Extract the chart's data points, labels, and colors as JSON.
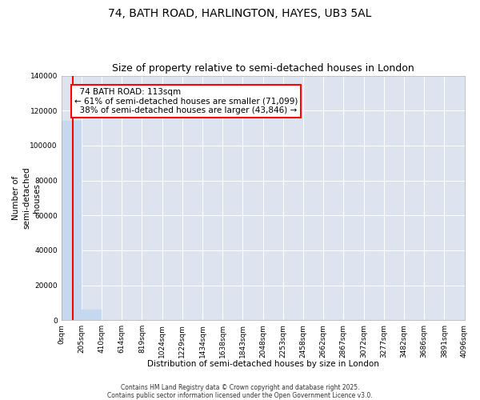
{
  "title1": "74, BATH ROAD, HARLINGTON, HAYES, UB3 5AL",
  "title2": "Size of property relative to semi-detached houses in London",
  "xlabel": "Distribution of semi-detached houses by size in London",
  "ylabel": "Number of\nsemi-detached\nhouses",
  "property_label": "74 BATH ROAD: 113sqm",
  "pct_smaller": 61,
  "pct_larger": 38,
  "count_smaller": 71099,
  "count_larger": 43846,
  "bar_color": "#c5d8f0",
  "vline_color": "red",
  "vline_x": 113,
  "background_color": "#dde4f0",
  "bins": [
    0,
    205,
    410,
    614,
    819,
    1024,
    1229,
    1434,
    1638,
    1843,
    2048,
    2253,
    2458,
    2662,
    2867,
    3072,
    3277,
    3482,
    3686,
    3891,
    4096
  ],
  "counts": [
    114000,
    6000,
    0,
    0,
    0,
    0,
    0,
    0,
    0,
    0,
    0,
    0,
    0,
    0,
    0,
    0,
    0,
    0,
    0,
    0
  ],
  "ylim": [
    0,
    140000
  ],
  "yticks": [
    0,
    20000,
    40000,
    60000,
    80000,
    100000,
    120000,
    140000
  ],
  "tick_labels": [
    "0sqm",
    "205sqm",
    "410sqm",
    "614sqm",
    "819sqm",
    "1024sqm",
    "1229sqm",
    "1434sqm",
    "1638sqm",
    "1843sqm",
    "2048sqm",
    "2253sqm",
    "2458sqm",
    "2662sqm",
    "2867sqm",
    "3072sqm",
    "3277sqm",
    "3482sqm",
    "3686sqm",
    "3891sqm",
    "4096sqm"
  ],
  "footnote": "Contains HM Land Registry data © Crown copyright and database right 2025.\nContains public sector information licensed under the Open Government Licence v3.0.",
  "title_fontsize": 10,
  "subtitle_fontsize": 9,
  "axis_fontsize": 7.5,
  "tick_fontsize": 6.5,
  "annot_fontsize": 7.5,
  "footnote_fontsize": 5.5
}
